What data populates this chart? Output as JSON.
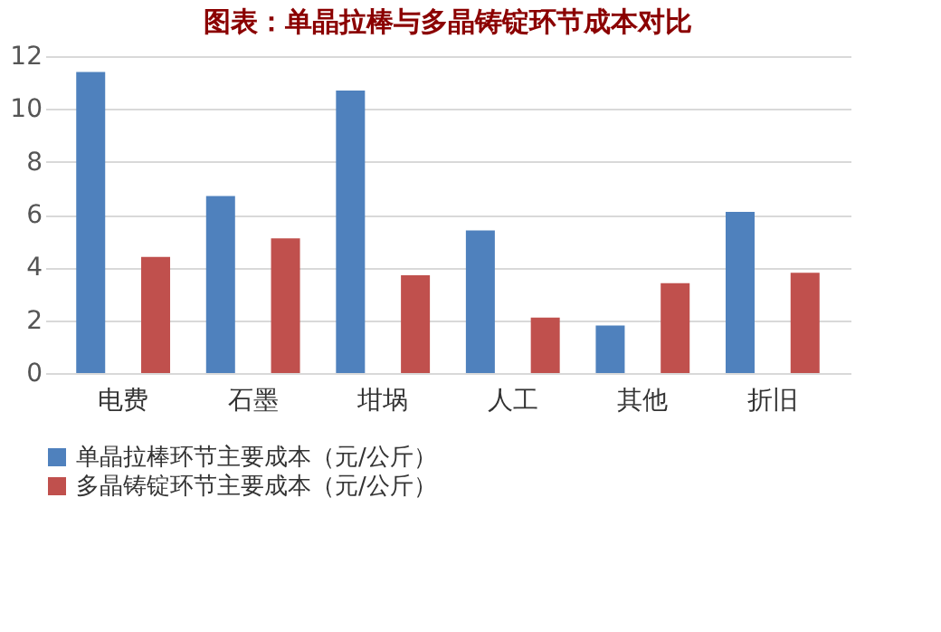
{
  "chart_data": {
    "type": "bar",
    "title": "图表：单晶拉棒与多晶铸锭环节成本对比",
    "categories": [
      "电费",
      "石墨",
      "坩埚",
      "人工",
      "其他",
      "折旧"
    ],
    "series": [
      {
        "name": "单晶拉棒环节主要成本（元/公斤）",
        "color": "#4f81bd",
        "values": [
          11.4,
          6.7,
          10.7,
          5.4,
          1.8,
          6.1
        ]
      },
      {
        "name": "多晶铸锭环节主要成本（元/公斤）",
        "color": "#c0504d",
        "values": [
          4.4,
          5.1,
          3.7,
          2.1,
          3.4,
          3.8
        ]
      }
    ],
    "ylim": [
      0,
      12
    ],
    "yticks": [
      0,
      2,
      4,
      6,
      8,
      10,
      12
    ],
    "grid": "y",
    "legend": "bottom"
  }
}
